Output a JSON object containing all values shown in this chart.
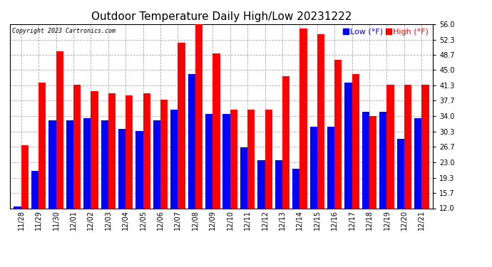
{
  "title": "Outdoor Temperature Daily High/Low 20231222",
  "copyright": "Copyright 2023 Cartronics.com",
  "legend_low": "Low",
  "legend_high": "High",
  "legend_unit": "(°F)",
  "dates": [
    "11/28",
    "11/29",
    "11/30",
    "12/01",
    "12/02",
    "12/03",
    "12/04",
    "12/05",
    "12/06",
    "12/07",
    "12/08",
    "12/09",
    "12/10",
    "12/11",
    "12/12",
    "12/13",
    "12/14",
    "12/15",
    "12/16",
    "12/17",
    "12/18",
    "12/19",
    "12/20",
    "12/21"
  ],
  "high": [
    27.0,
    42.0,
    49.5,
    41.5,
    40.0,
    39.5,
    39.0,
    39.5,
    38.0,
    51.5,
    57.0,
    49.0,
    35.5,
    35.5,
    35.5,
    43.5,
    55.0,
    53.5,
    47.5,
    44.0,
    34.0,
    41.5,
    41.5,
    41.5
  ],
  "low": [
    12.5,
    21.0,
    33.0,
    33.0,
    33.5,
    33.0,
    31.0,
    30.5,
    33.0,
    35.5,
    44.0,
    34.5,
    34.5,
    26.5,
    23.5,
    23.5,
    21.5,
    31.5,
    31.5,
    42.0,
    35.0,
    35.0,
    28.5,
    33.5
  ],
  "ylim": [
    12.0,
    56.0
  ],
  "yticks": [
    12.0,
    15.7,
    19.3,
    23.0,
    26.7,
    30.3,
    34.0,
    37.7,
    41.3,
    45.0,
    48.7,
    52.3,
    56.0
  ],
  "bar_width": 0.42,
  "high_color": "#ff0000",
  "low_color": "#0000ff",
  "bg_color": "#ffffff",
  "grid_color": "#aaaaaa",
  "title_fontsize": 11,
  "tick_fontsize": 7,
  "legend_fontsize": 8,
  "fig_width": 6.9,
  "fig_height": 3.75,
  "fig_dpi": 100
}
